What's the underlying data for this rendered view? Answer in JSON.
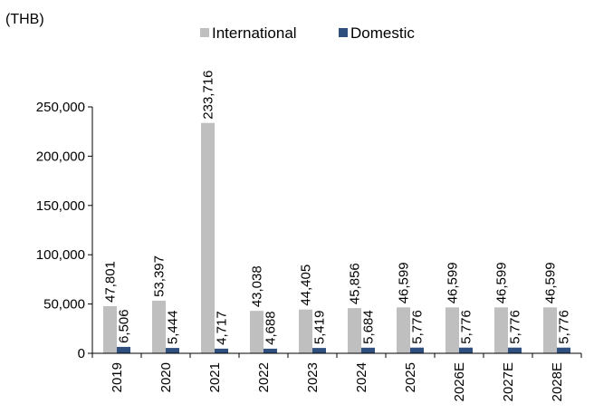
{
  "chart_data": {
    "type": "bar",
    "unit_label": "(THB)",
    "categories": [
      "2019",
      "2020",
      "2021",
      "2022",
      "2023",
      "2024",
      "2025",
      "2026E",
      "2027E",
      "2028E"
    ],
    "series": [
      {
        "name": "International",
        "color": "#bfbfbf",
        "values": [
          47801,
          53397,
          233716,
          43038,
          44405,
          45856,
          46599,
          46599,
          46599,
          46599
        ],
        "labels": [
          "47,801",
          "53,397",
          "233,716",
          "43,038",
          "44,405",
          "45,856",
          "46,599",
          "46,599",
          "46,599",
          "46,599"
        ]
      },
      {
        "name": "Domestic",
        "color": "#2f4f7f",
        "values": [
          6506,
          5444,
          4717,
          4688,
          5419,
          5684,
          5776,
          5776,
          5776,
          5776
        ],
        "labels": [
          "6,506",
          "5,444",
          "4,717",
          "4,688",
          "5,419",
          "5,684",
          "5,776",
          "5,776",
          "5,776",
          "5,776"
        ]
      }
    ],
    "ylim": [
      0,
      250000
    ],
    "yticks": [
      0,
      50000,
      100000,
      150000,
      200000,
      250000
    ],
    "ytick_labels": [
      "0",
      "50,000",
      "100,000",
      "150,000",
      "200,000",
      "250,000"
    ],
    "grid": false,
    "legend_position": "top"
  }
}
